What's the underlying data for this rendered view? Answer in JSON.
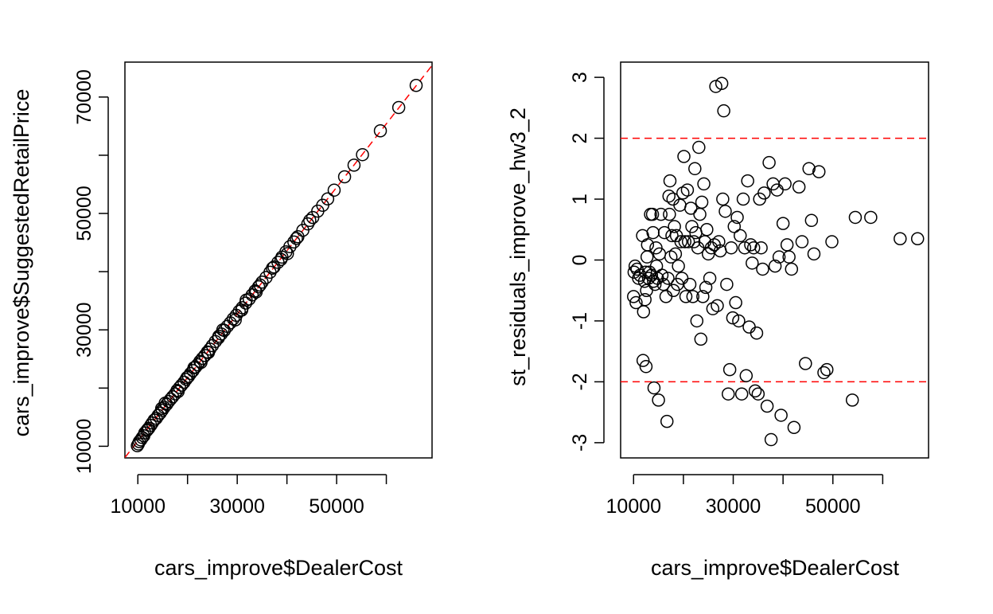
{
  "chart_data": [
    {
      "type": "scatter",
      "title": "",
      "xlabel": "cars_improve$DealerCost",
      "ylabel": "cars_improve$SuggestedRetailPrice",
      "xlim": [
        7400,
        69200
      ],
      "ylim": [
        8000,
        76000
      ],
      "x_ticks": [
        10000,
        20000,
        30000,
        40000,
        50000,
        60000
      ],
      "x_tick_labels": [
        "10000",
        "30000",
        "50000"
      ],
      "y_ticks": [
        10000,
        20000,
        30000,
        40000,
        50000,
        60000,
        70000
      ],
      "y_tick_labels": [
        "10000",
        "30000",
        "50000",
        "70000"
      ],
      "grid": false,
      "reference_lines": [
        {
          "kind": "abline",
          "intercept": 0,
          "slope": 1.09,
          "color": "#ff0000",
          "style": "dashed"
        }
      ],
      "points": [
        [
          9900,
          10100
        ],
        [
          10100,
          10400
        ],
        [
          10300,
          10800
        ],
        [
          10600,
          11100
        ],
        [
          10900,
          11500
        ],
        [
          11200,
          11800
        ],
        [
          11400,
          12300
        ],
        [
          11800,
          12700
        ],
        [
          12200,
          13100
        ],
        [
          12600,
          13600
        ],
        [
          12900,
          14000
        ],
        [
          13300,
          14500
        ],
        [
          13700,
          14800
        ],
        [
          14100,
          15300
        ],
        [
          14500,
          15700
        ],
        [
          14900,
          16200
        ],
        [
          15300,
          16700
        ],
        [
          15800,
          17200
        ],
        [
          16200,
          17700
        ],
        [
          16600,
          18100
        ],
        [
          17000,
          18500
        ],
        [
          17500,
          19000
        ],
        [
          17900,
          19600
        ],
        [
          18400,
          20100
        ],
        [
          18800,
          20500
        ],
        [
          19300,
          21000
        ],
        [
          19700,
          21500
        ],
        [
          20200,
          22000
        ],
        [
          20600,
          22500
        ],
        [
          21100,
          23000
        ],
        [
          21600,
          23600
        ],
        [
          22000,
          24000
        ],
        [
          22500,
          24600
        ],
        [
          23000,
          25100
        ],
        [
          23500,
          25600
        ],
        [
          24000,
          26200
        ],
        [
          24500,
          26700
        ],
        [
          25000,
          27300
        ],
        [
          25600,
          28000
        ],
        [
          26200,
          28600
        ],
        [
          26800,
          29300
        ],
        [
          27400,
          29900
        ],
        [
          28000,
          30600
        ],
        [
          28600,
          31200
        ],
        [
          29200,
          31900
        ],
        [
          29800,
          32500
        ],
        [
          30400,
          33200
        ],
        [
          31000,
          33800
        ],
        [
          31700,
          34600
        ],
        [
          32400,
          35300
        ],
        [
          33000,
          36000
        ],
        [
          33600,
          36700
        ],
        [
          34300,
          37400
        ],
        [
          35000,
          38200
        ],
        [
          35800,
          39000
        ],
        [
          36600,
          39900
        ],
        [
          37400,
          40800
        ],
        [
          38200,
          41600
        ],
        [
          39000,
          42500
        ],
        [
          39800,
          43400
        ],
        [
          40600,
          44300
        ],
        [
          41400,
          45100
        ],
        [
          42200,
          46000
        ],
        [
          43200,
          47100
        ],
        [
          44200,
          48200
        ],
        [
          45200,
          49300
        ],
        [
          46200,
          50400
        ],
        [
          47200,
          51400
        ],
        [
          48200,
          52500
        ],
        [
          49500,
          54000
        ],
        [
          51600,
          56300
        ],
        [
          53500,
          58300
        ],
        [
          55200,
          60100
        ],
        [
          58800,
          64200
        ],
        [
          62500,
          68200
        ],
        [
          66000,
          72000
        ],
        [
          12000,
          12900
        ],
        [
          14800,
          16500
        ],
        [
          18100,
          19400
        ],
        [
          21300,
          23500
        ],
        [
          24200,
          26100
        ],
        [
          27100,
          30000
        ],
        [
          29600,
          31700
        ],
        [
          31800,
          35100
        ],
        [
          33800,
          36500
        ],
        [
          37100,
          40600
        ],
        [
          40100,
          43100
        ],
        [
          44600,
          48800
        ],
        [
          15500,
          17400
        ],
        [
          19900,
          21800
        ],
        [
          22700,
          24400
        ],
        [
          26300,
          28900
        ],
        [
          30900,
          33400
        ],
        [
          34600,
          37700
        ],
        [
          38800,
          42100
        ],
        [
          41900,
          45700
        ]
      ]
    },
    {
      "type": "scatter",
      "title": "",
      "xlabel": "cars_improve$DealerCost",
      "ylabel": "st_residuals_improve_hw3_2",
      "xlim": [
        7400,
        69200
      ],
      "ylim": [
        -3.25,
        3.25
      ],
      "x_ticks": [
        10000,
        20000,
        30000,
        40000,
        50000,
        60000
      ],
      "x_tick_labels": [
        "10000",
        "30000",
        "50000"
      ],
      "y_ticks": [
        -3,
        -2,
        -1,
        0,
        1,
        2,
        3
      ],
      "y_tick_labels": [
        "-3",
        "-2",
        "-1",
        "0",
        "1",
        "2",
        "3"
      ],
      "grid": false,
      "reference_lines": [
        {
          "kind": "hline",
          "y": 2,
          "color": "#ff0000",
          "style": "dashed"
        },
        {
          "kind": "hline",
          "y": -2,
          "color": "#ff0000",
          "style": "dashed"
        }
      ],
      "points": [
        [
          10000,
          -0.6
        ],
        [
          10100,
          -0.2
        ],
        [
          10300,
          -0.1
        ],
        [
          10500,
          -0.7
        ],
        [
          10700,
          -0.15
        ],
        [
          11000,
          -0.3
        ],
        [
          11300,
          -0.25
        ],
        [
          11800,
          0.4
        ],
        [
          11900,
          -1.65
        ],
        [
          12000,
          -0.85
        ],
        [
          12200,
          -0.35
        ],
        [
          12300,
          -0.65
        ],
        [
          12400,
          -0.2
        ],
        [
          12500,
          -1.75
        ],
        [
          12600,
          -0.5
        ],
        [
          12700,
          0.05
        ],
        [
          12800,
          0.25
        ],
        [
          13000,
          -0.3
        ],
        [
          13200,
          -0.2
        ],
        [
          13400,
          0.75
        ],
        [
          13600,
          -0.25
        ],
        [
          13800,
          0.75
        ],
        [
          13900,
          0.45
        ],
        [
          14000,
          -0.35
        ],
        [
          14100,
          -2.1
        ],
        [
          14300,
          -0.4
        ],
        [
          14500,
          0.2
        ],
        [
          14600,
          -0.1
        ],
        [
          14800,
          -0.3
        ],
        [
          15000,
          -2.3
        ],
        [
          15200,
          0.1
        ],
        [
          15500,
          0.75
        ],
        [
          15700,
          -0.25
        ],
        [
          16000,
          -0.4
        ],
        [
          16200,
          0.45
        ],
        [
          16500,
          -0.6
        ],
        [
          16700,
          -2.65
        ],
        [
          16900,
          -0.3
        ],
        [
          17100,
          1.05
        ],
        [
          17200,
          0.75
        ],
        [
          17300,
          1.3
        ],
        [
          17500,
          0.05
        ],
        [
          17700,
          0.4
        ],
        [
          17900,
          1.0
        ],
        [
          18000,
          -0.5
        ],
        [
          18200,
          0.55
        ],
        [
          18400,
          0.1
        ],
        [
          18600,
          0.4
        ],
        [
          18800,
          -0.4
        ],
        [
          19000,
          -0.1
        ],
        [
          19300,
          0.9
        ],
        [
          19500,
          0.3
        ],
        [
          19700,
          -0.3
        ],
        [
          19900,
          1.1
        ],
        [
          20100,
          1.7
        ],
        [
          20300,
          0.3
        ],
        [
          20500,
          -0.6
        ],
        [
          20800,
          1.15
        ],
        [
          21000,
          0.3
        ],
        [
          21300,
          -0.4
        ],
        [
          21500,
          0.85
        ],
        [
          21700,
          0.55
        ],
        [
          21900,
          -0.6
        ],
        [
          22100,
          0.3
        ],
        [
          22300,
          1.5
        ],
        [
          22500,
          0.45
        ],
        [
          22700,
          -1.0
        ],
        [
          22900,
          0.2
        ],
        [
          23100,
          1.85
        ],
        [
          23300,
          0.75
        ],
        [
          23500,
          -1.3
        ],
        [
          23700,
          0.95
        ],
        [
          23900,
          -0.6
        ],
        [
          24100,
          1.25
        ],
        [
          24300,
          0.3
        ],
        [
          24500,
          -0.45
        ],
        [
          24700,
          0.5
        ],
        [
          25000,
          0.1
        ],
        [
          25300,
          -0.3
        ],
        [
          25600,
          0.2
        ],
        [
          25900,
          -0.8
        ],
        [
          26200,
          0.25
        ],
        [
          26500,
          2.85
        ],
        [
          26800,
          -0.75
        ],
        [
          27100,
          0.3
        ],
        [
          27400,
          0.15
        ],
        [
          27700,
          2.9
        ],
        [
          27900,
          1.0
        ],
        [
          28100,
          2.45
        ],
        [
          28400,
          0.8
        ],
        [
          28700,
          -0.4
        ],
        [
          29000,
          -2.2
        ],
        [
          29300,
          -1.8
        ],
        [
          29600,
          0.2
        ],
        [
          29900,
          -0.95
        ],
        [
          30200,
          0.55
        ],
        [
          30500,
          -0.7
        ],
        [
          30800,
          0.7
        ],
        [
          31100,
          -1.0
        ],
        [
          31400,
          0.4
        ],
        [
          31700,
          -2.2
        ],
        [
          32000,
          1.0
        ],
        [
          32300,
          0.2
        ],
        [
          32600,
          -1.9
        ],
        [
          32900,
          1.3
        ],
        [
          33200,
          -1.1
        ],
        [
          33500,
          0.25
        ],
        [
          33800,
          -0.05
        ],
        [
          34100,
          0.2
        ],
        [
          34400,
          -2.15
        ],
        [
          34700,
          -1.2
        ],
        [
          35000,
          -2.2
        ],
        [
          35300,
          1.0
        ],
        [
          35600,
          0.2
        ],
        [
          35900,
          -0.15
        ],
        [
          36200,
          1.1
        ],
        [
          36800,
          -2.4
        ],
        [
          37200,
          1.6
        ],
        [
          37600,
          -2.95
        ],
        [
          38000,
          1.25
        ],
        [
          38400,
          -0.1
        ],
        [
          38800,
          1.15
        ],
        [
          39200,
          0.05
        ],
        [
          39600,
          -2.55
        ],
        [
          40000,
          0.6
        ],
        [
          40400,
          1.25
        ],
        [
          40800,
          0.25
        ],
        [
          41200,
          0.05
        ],
        [
          41700,
          -0.15
        ],
        [
          42200,
          -2.75
        ],
        [
          43200,
          1.2
        ],
        [
          43800,
          0.3
        ],
        [
          44500,
          -1.7
        ],
        [
          45200,
          1.5
        ],
        [
          45700,
          0.65
        ],
        [
          46200,
          0.1
        ],
        [
          47200,
          1.45
        ],
        [
          48200,
          -1.85
        ],
        [
          48800,
          -1.8
        ],
        [
          49800,
          0.3
        ],
        [
          53900,
          -2.3
        ],
        [
          54500,
          0.7
        ],
        [
          57600,
          0.7
        ],
        [
          63500,
          0.35
        ],
        [
          67000,
          0.35
        ]
      ]
    }
  ]
}
